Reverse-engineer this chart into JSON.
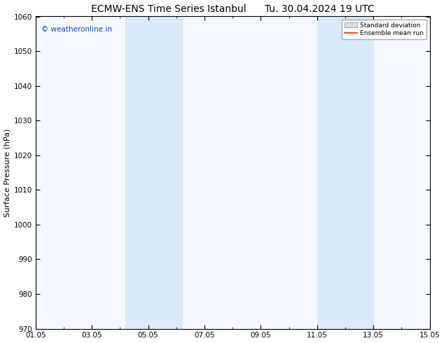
{
  "title_left": "ECMW-ENS Time Series Istanbul",
  "title_right": "Tu. 30.04.2024 19 UTC",
  "ylabel": "Surface Pressure (hPa)",
  "ylim": [
    970,
    1060
  ],
  "yticks": [
    970,
    980,
    990,
    1000,
    1010,
    1020,
    1030,
    1040,
    1050,
    1060
  ],
  "xtick_labels": [
    "01.05",
    "03.05",
    "05.05",
    "07.05",
    "09.05",
    "11.05",
    "13.05",
    "15.05"
  ],
  "xtick_positions": [
    1,
    3,
    5,
    7,
    9,
    11,
    13,
    15
  ],
  "xlim": [
    1,
    15
  ],
  "shaded_bands": [
    {
      "x_start": 4.2,
      "x_end": 6.2
    },
    {
      "x_start": 11.0,
      "x_end": 13.0
    }
  ],
  "shaded_color": "#daeaf8",
  "background_color": "#ffffff",
  "plot_bg_color": "#f5f9ff",
  "watermark_text": "© weatheronline.in",
  "watermark_color": "#1a44bb",
  "legend_std_label": "Standard deviation",
  "legend_mean_label": "Ensemble mean run",
  "legend_std_facecolor": "#e0e0e0",
  "legend_std_edgecolor": "#aaaaaa",
  "legend_mean_color": "#ff2200",
  "title_fontsize": 10,
  "axis_label_fontsize": 8,
  "tick_fontsize": 7.5,
  "watermark_fontsize": 7.5
}
